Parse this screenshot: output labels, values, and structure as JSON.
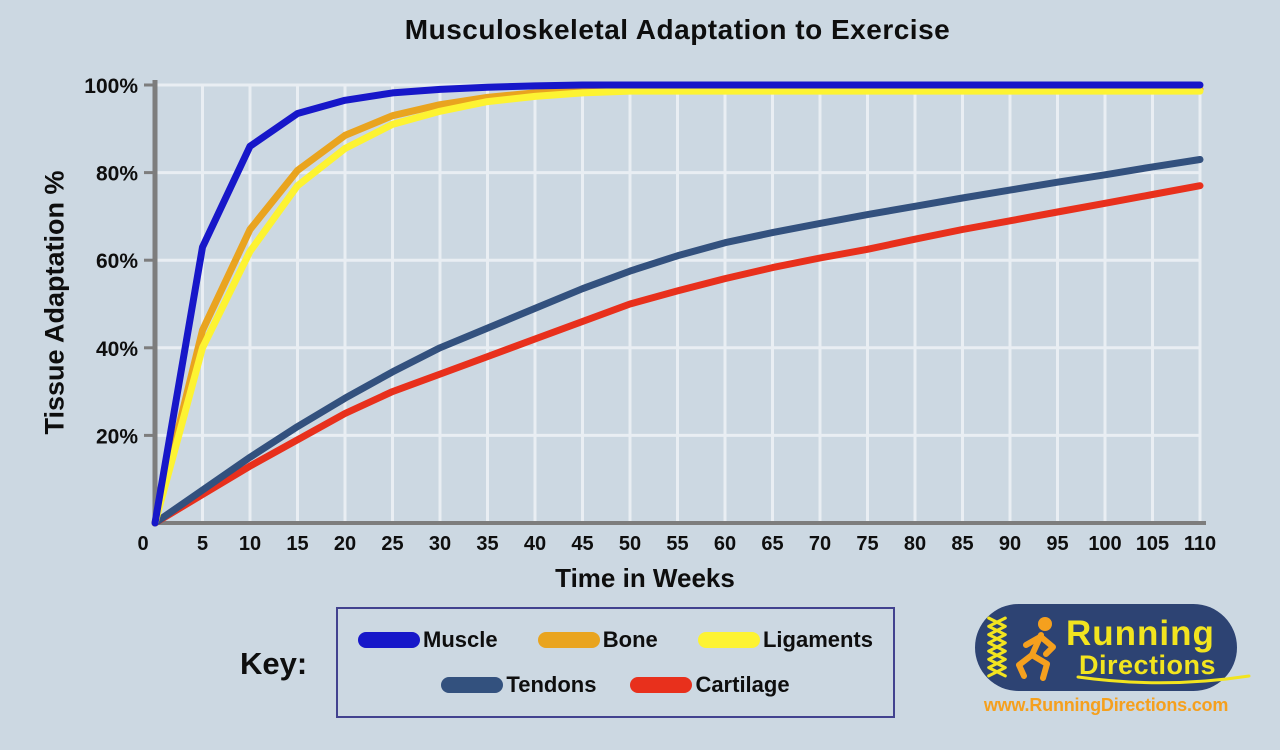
{
  "page": {
    "background": "#ccd8e2"
  },
  "chart_data": {
    "type": "line",
    "title": "Musculoskeletal Adaptation to Exercise",
    "xlabel": "Time in Weeks",
    "ylabel": "Tissue Adaptation %",
    "xlim": [
      0,
      110
    ],
    "ylim": [
      0,
      100
    ],
    "grid": true,
    "grid_color": "#e9eef3",
    "axis_color": "#7d7d7d",
    "origin_label": "0",
    "x_ticks": [
      5,
      10,
      15,
      20,
      25,
      30,
      35,
      40,
      45,
      50,
      55,
      60,
      65,
      70,
      75,
      80,
      85,
      90,
      95,
      100,
      105,
      110
    ],
    "y_ticks": [
      {
        "value": 20,
        "label": "20%"
      },
      {
        "value": 40,
        "label": "40%"
      },
      {
        "value": 60,
        "label": "60%"
      },
      {
        "value": 80,
        "label": "80%"
      },
      {
        "value": 100,
        "label": "100%"
      }
    ],
    "legend_position": "bottom",
    "categories": [
      0,
      5,
      10,
      15,
      20,
      25,
      30,
      35,
      40,
      45,
      50,
      55,
      60,
      65,
      70,
      75,
      80,
      85,
      90,
      95,
      100,
      105,
      110
    ],
    "series": [
      {
        "name": "Muscle",
        "color": "#1717c9",
        "values": [
          0,
          63,
          86,
          93.5,
          96.5,
          98.2,
          99,
          99.5,
          99.8,
          100,
          100,
          100,
          100,
          100,
          100,
          100,
          100,
          100,
          100,
          100,
          100,
          100,
          100
        ]
      },
      {
        "name": "Bone",
        "color": "#e9a41f",
        "values": [
          0,
          44,
          67,
          80.5,
          88.5,
          93,
          95.5,
          97.2,
          98.2,
          98.8,
          99,
          99,
          99,
          99,
          99,
          99,
          99,
          99,
          99,
          99,
          99,
          99,
          99
        ]
      },
      {
        "name": "Ligaments",
        "color": "#fdf332",
        "values": [
          0,
          40,
          62,
          77,
          85.5,
          91,
          94,
          96.2,
          97.4,
          98.2,
          98.6,
          98.6,
          98.6,
          98.6,
          98.6,
          98.6,
          98.6,
          98.6,
          98.6,
          98.6,
          98.6,
          98.6,
          98.6
        ]
      },
      {
        "name": "Tendons",
        "color": "#33517e",
        "values": [
          0,
          7.5,
          15,
          22,
          28.5,
          34.5,
          40,
          44.5,
          49,
          53.5,
          57.5,
          61,
          64,
          66.3,
          68.4,
          70.4,
          72.3,
          74.2,
          76,
          77.8,
          79.5,
          81.3,
          83
        ]
      },
      {
        "name": "Cartilage",
        "color": "#e8301c",
        "values": [
          0,
          6.5,
          13,
          19,
          25,
          30,
          34,
          38,
          42,
          46,
          50,
          53,
          55.8,
          58.3,
          60.5,
          62.5,
          64.8,
          67,
          69,
          71,
          73,
          75,
          77
        ]
      }
    ]
  },
  "legend": {
    "key_label": "Key:",
    "border_color": "#42428f"
  },
  "branding": {
    "line1": "Running",
    "line2": "Directions",
    "url": "www.RunningDirections.com",
    "colors": {
      "pill": "#2d4373",
      "text": "#f2e41f",
      "accent": "#f5a01e"
    }
  }
}
